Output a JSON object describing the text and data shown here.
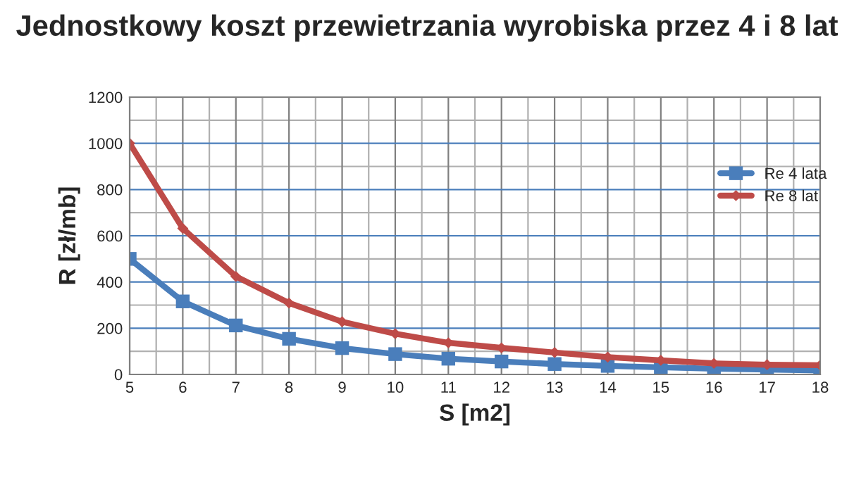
{
  "chart_data": {
    "type": "line",
    "title": "Jednostkowy koszt przewietrzania wyrobiska przez 4 i 8 lat",
    "xlabel": "S [m2]",
    "ylabel": "R [zł/mb]",
    "x": [
      5,
      6,
      7,
      8,
      9,
      10,
      11,
      12,
      13,
      14,
      15,
      16,
      17,
      18
    ],
    "series": [
      {
        "name": "Re 4 lata",
        "color": "#4a7ebb",
        "marker": "square",
        "values": [
          500,
          316,
          212,
          154,
          114,
          88,
          68,
          56,
          45,
          37,
          31,
          25,
          21,
          17
        ]
      },
      {
        "name": "Re 8 lat",
        "color": "#be4b48",
        "marker": "diamond",
        "values": [
          1000,
          632,
          424,
          309,
          228,
          176,
          137,
          115,
          95,
          75,
          61,
          48,
          42,
          40
        ]
      }
    ],
    "xlim": [
      5,
      18
    ],
    "xticks": [
      5,
      6,
      7,
      8,
      9,
      10,
      11,
      12,
      13,
      14,
      15,
      16,
      17,
      18
    ],
    "ylim": [
      0,
      1200
    ],
    "yticks": [
      0,
      200,
      400,
      600,
      800,
      1000,
      1200
    ],
    "grid": true,
    "legend": "right",
    "line_style": "solid"
  }
}
